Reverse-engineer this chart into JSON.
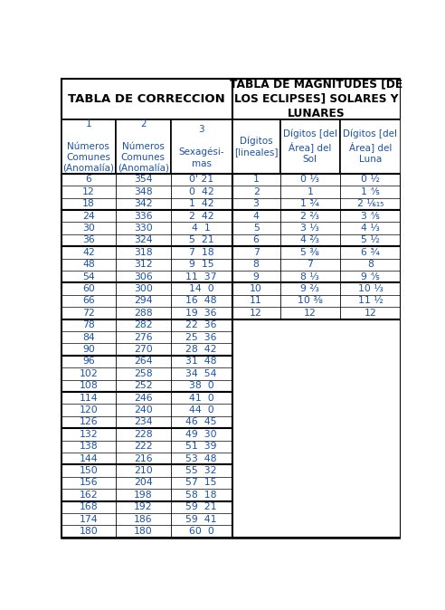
{
  "title1": "TABLA DE CORRECCION",
  "title2": "TABLA DE MAGNITUDES [DE\nLOS ECLIPSES] SOLARES Y\nLUNARES",
  "col_headers_left": [
    "1\n\nNúmeros\nComunes\n(Anomalía)",
    "2\n\nNúmeros\nComunes\n(Anomalía)",
    "3\n\nSexagési-\nmas"
  ],
  "col_headers_right": [
    "Dígitos\n[lineales]",
    "Dígitos [del\nÁrea] del\nSol",
    "Dígitos [del\nÁrea] del\nLuna"
  ],
  "left_rows": [
    [
      "6",
      "354",
      "0' 21"
    ],
    [
      "12",
      "348",
      "0  42"
    ],
    [
      "18",
      "342",
      "1  42"
    ],
    [
      "24",
      "336",
      "2  42"
    ],
    [
      "30",
      "330",
      "4  1"
    ],
    [
      "36",
      "324",
      "5  21"
    ],
    [
      "42",
      "318",
      "7  18"
    ],
    [
      "48",
      "312",
      "9  15"
    ],
    [
      "54",
      "306",
      "11  37"
    ],
    [
      "60",
      "300",
      "14  0"
    ],
    [
      "66",
      "294",
      "16  48"
    ],
    [
      "72",
      "288",
      "19  36"
    ],
    [
      "78",
      "282",
      "22  36"
    ],
    [
      "84",
      "276",
      "25  36"
    ],
    [
      "90",
      "270",
      "28  42"
    ],
    [
      "96",
      "264",
      "31  48"
    ],
    [
      "102",
      "258",
      "34  54"
    ],
    [
      "108",
      "252",
      "38  0"
    ],
    [
      "114",
      "246",
      "41  0"
    ],
    [
      "120",
      "240",
      "44  0"
    ],
    [
      "126",
      "234",
      "46  45"
    ],
    [
      "132",
      "228",
      "49  30"
    ],
    [
      "138",
      "222",
      "51  39"
    ],
    [
      "144",
      "216",
      "53  48"
    ],
    [
      "150",
      "210",
      "55  32"
    ],
    [
      "156",
      "204",
      "57  15"
    ],
    [
      "162",
      "198",
      "58  18"
    ],
    [
      "168",
      "192",
      "59  21"
    ],
    [
      "174",
      "186",
      "59  41"
    ],
    [
      "180",
      "180",
      "60  0"
    ]
  ],
  "right_rows": [
    [
      "1",
      "0 ⅓",
      "0 ½"
    ],
    [
      "2",
      "1",
      "1 ⅘"
    ],
    [
      "3",
      "1 ¾",
      "2 ⅙₁₅"
    ],
    [
      "4",
      "2 ⅔",
      "3 ⅘"
    ],
    [
      "5",
      "3 ⅓",
      "4 ⅓"
    ],
    [
      "6",
      "4 ⅔",
      "5 ½"
    ],
    [
      "7",
      "5 ⅜",
      "6 ¾"
    ],
    [
      "8",
      "7",
      "8"
    ],
    [
      "9",
      "8 ⅓",
      "9 ⅘"
    ],
    [
      "10",
      "9 ⅔",
      "10 ⅓"
    ],
    [
      "11",
      "10 ⅜",
      "11 ½"
    ],
    [
      "12",
      "12",
      "12"
    ]
  ],
  "font_color": "#1a52a8",
  "border_color": "#000000",
  "bg_color": "#ffffff"
}
